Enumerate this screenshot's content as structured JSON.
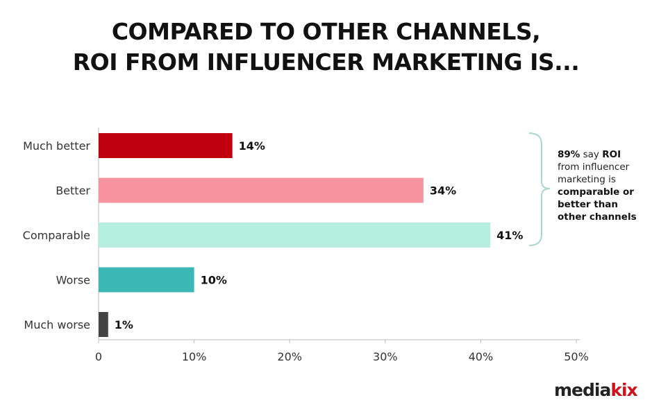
{
  "chart_data": {
    "type": "bar",
    "orientation": "horizontal",
    "title": [
      "COMPARED TO OTHER CHANNELS,",
      "ROI FROM INFLUENCER MARKETING IS..."
    ],
    "categories": [
      "Much better",
      "Better",
      "Comparable",
      "Worse",
      "Much worse"
    ],
    "values": [
      14,
      34,
      41,
      10,
      1
    ],
    "data_labels": [
      "14%",
      "34%",
      "41%",
      "10%",
      "1%"
    ],
    "colors": [
      "#c1000f",
      "#f5949e",
      "#b6eee0",
      "#3bb7b5",
      "#444444"
    ],
    "xlim": [
      0,
      50
    ],
    "x_ticks": [
      0,
      10,
      20,
      30,
      40,
      50
    ],
    "x_tick_labels": [
      "0",
      "10%",
      "20%",
      "30%",
      "40%",
      "50%"
    ],
    "xlabel": "",
    "ylabel": "",
    "grid": false,
    "annotation": {
      "parts": [
        {
          "text": "89%",
          "bold": true
        },
        {
          "text": " say ",
          "bold": false
        },
        {
          "text": "ROI",
          "bold": true
        },
        {
          "text": " from influencer marketing is ",
          "bold": false
        },
        {
          "text": "comparable or better than other channels",
          "bold": true
        }
      ]
    }
  },
  "logo": {
    "part1": "media",
    "part2": "kix"
  }
}
